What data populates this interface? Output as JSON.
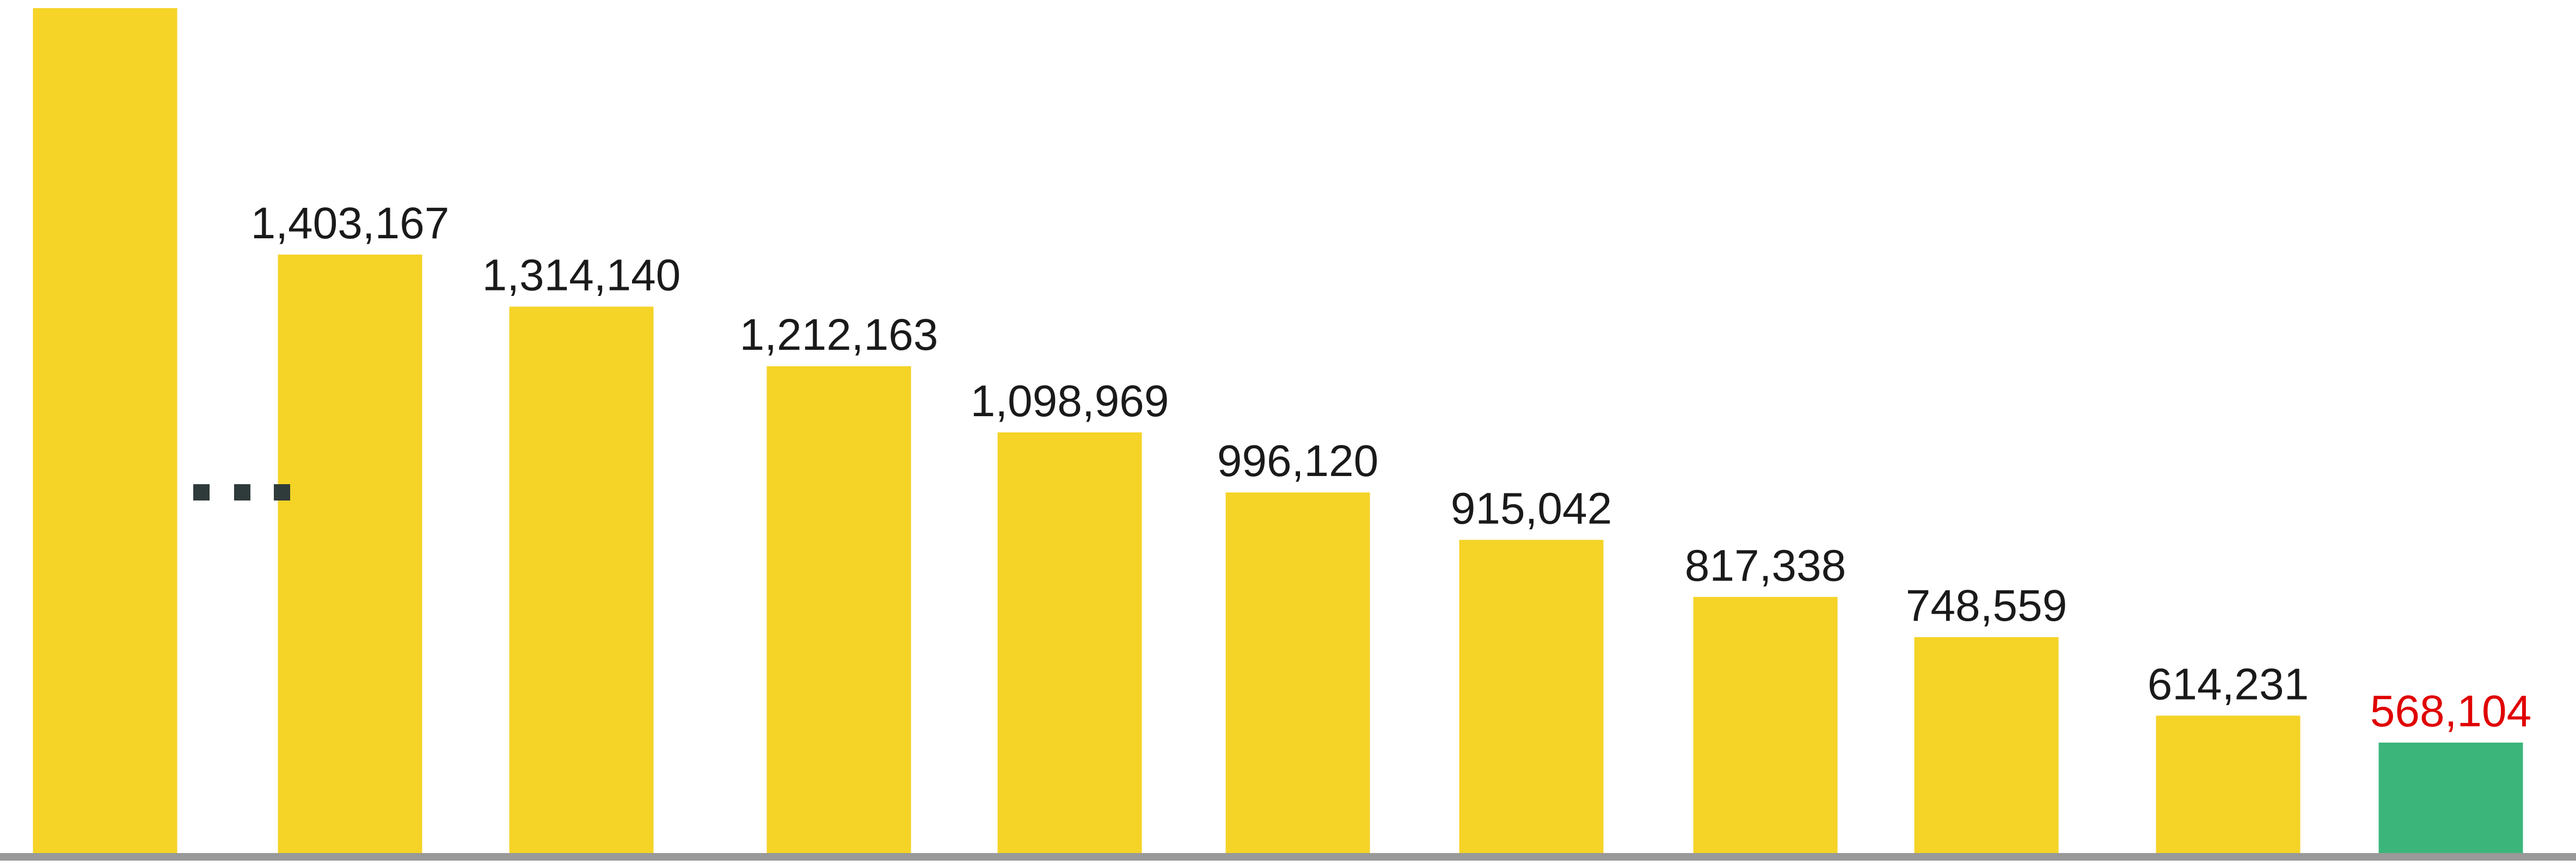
{
  "chart_data": {
    "type": "bar",
    "title": "",
    "xlabel": "",
    "ylabel": "",
    "axis_break_after_first_bar": true,
    "break_marker": "...",
    "colors": {
      "bar": "#F5D327",
      "highlight_bar": "#3CB57A",
      "label": "#1a1a1a",
      "highlight_label": "#E00000",
      "baseline": "#999999",
      "break_marker": "#2f3a3a"
    },
    "bars": [
      {
        "value": null,
        "label": "",
        "highlight": false,
        "truncated": true
      },
      {
        "value": 1403167,
        "label": "1,403,167",
        "highlight": false
      },
      {
        "value": 1314140,
        "label": "1,314,140",
        "highlight": false
      },
      {
        "value": 1212163,
        "label": "1,212,163",
        "highlight": false
      },
      {
        "value": 1098969,
        "label": "1,098,969",
        "highlight": false
      },
      {
        "value": 996120,
        "label": "996,120",
        "highlight": false
      },
      {
        "value": 915042,
        "label": "915,042",
        "highlight": false
      },
      {
        "value": 817338,
        "label": "817,338",
        "highlight": false
      },
      {
        "value": 748559,
        "label": "748,559",
        "highlight": false
      },
      {
        "value": 614231,
        "label": "614,231",
        "highlight": false
      },
      {
        "value": 568104,
        "label": "568,104",
        "highlight": true
      }
    ]
  }
}
